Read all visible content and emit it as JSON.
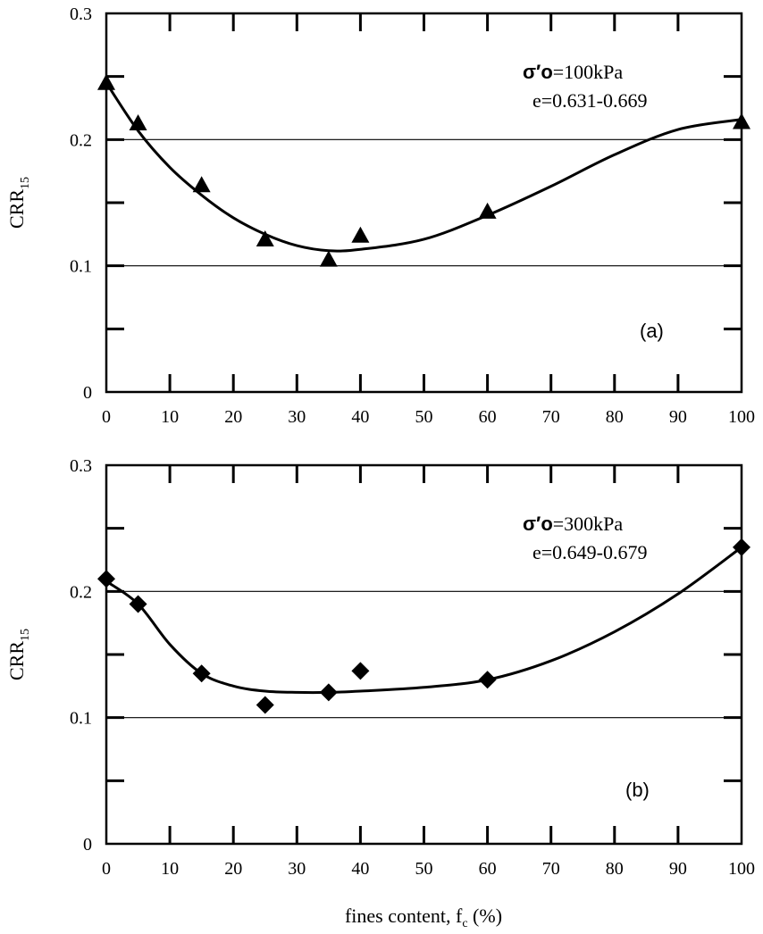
{
  "chart_data": [
    {
      "type": "scatter",
      "panel": "a",
      "panel_label": "(a)",
      "ylabel": "CRR",
      "ylabel_sub": "15",
      "annotation_sigma": "σ′o",
      "annotation_pressure": "=100kPa",
      "annotation_void": "e=0.631-0.669",
      "xlim": [
        0,
        100
      ],
      "ylim": [
        0,
        0.3
      ],
      "x_ticks": [
        0,
        10,
        20,
        30,
        40,
        50,
        60,
        70,
        80,
        90,
        100
      ],
      "x_tick_labels": [
        "0",
        "10",
        "20",
        "30",
        "40",
        "50",
        "60",
        "70",
        "80",
        "90",
        "100"
      ],
      "y_ticks": [
        0,
        0.1,
        0.2,
        0.3
      ],
      "y_tick_labels": [
        "0",
        "0.1",
        "0.2",
        "0.3"
      ],
      "gridlines_y": [
        0.1,
        0.2
      ],
      "marker": "triangle",
      "points": [
        {
          "x": 0,
          "y": 0.245
        },
        {
          "x": 5,
          "y": 0.213
        },
        {
          "x": 15,
          "y": 0.164
        },
        {
          "x": 25,
          "y": 0.121
        },
        {
          "x": 35,
          "y": 0.105
        },
        {
          "x": 40,
          "y": 0.124
        },
        {
          "x": 60,
          "y": 0.143
        },
        {
          "x": 100,
          "y": 0.214
        }
      ],
      "trend_curve": [
        [
          0,
          0.245
        ],
        [
          5,
          0.207
        ],
        [
          10,
          0.178
        ],
        [
          15,
          0.156
        ],
        [
          20,
          0.138
        ],
        [
          25,
          0.125
        ],
        [
          30,
          0.116
        ],
        [
          35,
          0.112
        ],
        [
          40,
          0.113
        ],
        [
          50,
          0.121
        ],
        [
          60,
          0.14
        ],
        [
          70,
          0.163
        ],
        [
          80,
          0.188
        ],
        [
          90,
          0.208
        ],
        [
          100,
          0.216
        ]
      ]
    },
    {
      "type": "scatter",
      "panel": "b",
      "panel_label": "(b)",
      "ylabel": "CRR",
      "ylabel_sub": "15",
      "annotation_sigma": "σ′o",
      "annotation_pressure": "=300kPa",
      "annotation_void": "e=0.649-0.679",
      "xlim": [
        0,
        100
      ],
      "ylim": [
        0,
        0.3
      ],
      "x_ticks": [
        0,
        10,
        20,
        30,
        40,
        50,
        60,
        70,
        80,
        90,
        100
      ],
      "x_tick_labels": [
        "0",
        "10",
        "20",
        "30",
        "40",
        "50",
        "60",
        "70",
        "80",
        "90",
        "100"
      ],
      "y_ticks": [
        0,
        0.1,
        0.2,
        0.3
      ],
      "y_tick_labels": [
        "0",
        "0.1",
        "0.2",
        "0.3"
      ],
      "gridlines_y": [
        0.1,
        0.2
      ],
      "marker": "diamond",
      "xlabel": "fines content, f",
      "xlabel_sub": "c",
      "xlabel_suffix": " (%)",
      "points": [
        {
          "x": 0,
          "y": 0.21
        },
        {
          "x": 5,
          "y": 0.19
        },
        {
          "x": 15,
          "y": 0.135
        },
        {
          "x": 25,
          "y": 0.11
        },
        {
          "x": 35,
          "y": 0.12
        },
        {
          "x": 40,
          "y": 0.137
        },
        {
          "x": 60,
          "y": 0.13
        },
        {
          "x": 100,
          "y": 0.235
        }
      ],
      "trend_curve": [
        [
          0,
          0.208
        ],
        [
          5,
          0.19
        ],
        [
          10,
          0.158
        ],
        [
          15,
          0.135
        ],
        [
          20,
          0.125
        ],
        [
          25,
          0.121
        ],
        [
          30,
          0.12
        ],
        [
          35,
          0.12
        ],
        [
          40,
          0.121
        ],
        [
          50,
          0.124
        ],
        [
          60,
          0.13
        ],
        [
          70,
          0.145
        ],
        [
          80,
          0.168
        ],
        [
          90,
          0.198
        ],
        [
          100,
          0.235
        ]
      ]
    }
  ]
}
